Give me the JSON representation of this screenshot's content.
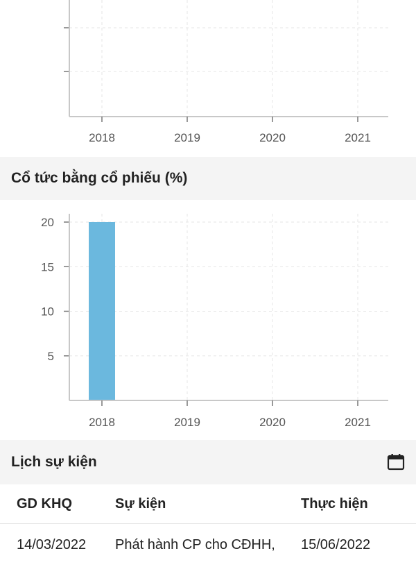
{
  "top_chart": {
    "categories": [
      "2018",
      "2019",
      "2020",
      "2021"
    ]
  },
  "stock_dividend": {
    "title": "Cổ tức bằng cổ phiếu (%)"
  },
  "chart_data": [
    {
      "type": "bar",
      "categories": [
        "2018",
        "2019",
        "2020",
        "2021"
      ],
      "values": [
        null,
        null,
        null,
        null
      ],
      "xlabel": "",
      "ylabel": "",
      "grid": true,
      "note_ticks": "y-axis ticks partially cropped; no labels visible"
    },
    {
      "type": "bar",
      "title": "Cổ tức bằng cổ phiếu (%)",
      "categories": [
        "2018",
        "2019",
        "2020",
        "2021"
      ],
      "values": [
        20,
        null,
        null,
        null
      ],
      "yticks": [
        5,
        10,
        15,
        20
      ],
      "ylim": [
        0,
        20
      ],
      "xlabel": "",
      "ylabel": "",
      "grid": true,
      "colors": {
        "bar": "#6bb8de"
      }
    }
  ],
  "events": {
    "title": "Lịch sự kiện",
    "calendar_icon": "calendar-icon",
    "columns": [
      "GD KHQ",
      "Sự kiện",
      "Thực hiện"
    ],
    "rows": [
      {
        "ex_date": "14/03/2022",
        "event": "Phát hành CP cho CĐHH,",
        "exec_date": "15/06/2022"
      }
    ]
  }
}
